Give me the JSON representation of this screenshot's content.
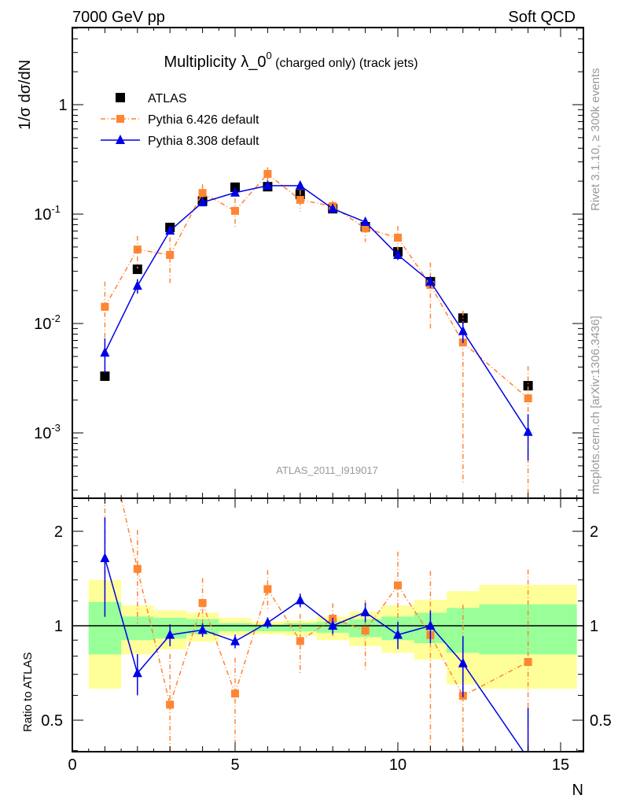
{
  "header": {
    "left": "7000 GeV pp",
    "right": "Soft QCD"
  },
  "side_text": {
    "rivet": "Rivet 3.1.10, ≥ 300k events",
    "mcplots": "mcplots.cern.ch [arXiv:1306.3436]"
  },
  "watermark": "ATLAS_2011_I919017",
  "chart_data": {
    "type": "scatter",
    "title": {
      "main": "Multiplicity λ_0",
      "sup": "0",
      "suffix": " (charged only) (track jets)"
    },
    "xlabel": "N",
    "ylabel": "1/σ dσ/dN",
    "ratio_ylabel": "Ratio to ATLAS",
    "xlim": [
      0,
      15.7
    ],
    "ylim": [
      0.00025,
      5.0
    ],
    "yscale": "log",
    "ratio_ylim": [
      0.397,
      2.55
    ],
    "x_ticks": [
      "0",
      "5",
      "10",
      "15"
    ],
    "y_ticks": [
      {
        "base": "10",
        "exp": "-3",
        "value": 0.001
      },
      {
        "base": "10",
        "exp": "-2",
        "value": 0.01
      },
      {
        "base": "10",
        "exp": "-1",
        "value": 0.1
      },
      {
        "base": "1",
        "exp": "",
        "value": 1
      }
    ],
    "ratio_ticks": [
      {
        "label": "0.5",
        "value": 0.5
      },
      {
        "label": "1",
        "value": 1
      },
      {
        "label": "2",
        "value": 2
      }
    ],
    "legend_position": "top-left",
    "x": [
      1,
      2,
      3,
      4,
      5,
      6,
      7,
      8,
      9,
      10,
      11,
      12,
      14
    ],
    "series": [
      {
        "name": "ATLAS",
        "color": "#000000",
        "marker": "square",
        "values": [
          0.0033,
          0.0313,
          0.0755,
          0.132,
          0.176,
          0.178,
          0.151,
          0.112,
          0.0767,
          0.0452,
          0.0241,
          0.0112,
          0.0027
        ]
      },
      {
        "name": "Pythia 6.426 default",
        "color": "#ff8533",
        "marker": "square",
        "line": "dashdot",
        "values": [
          0.0142,
          0.0475,
          0.0423,
          0.156,
          0.107,
          0.233,
          0.135,
          0.118,
          0.074,
          0.0608,
          0.0225,
          0.0067,
          0.00207
        ],
        "rel_err": [
          0.7,
          0.33,
          0.45,
          0.2,
          0.3,
          0.15,
          0.22,
          0.12,
          0.25,
          0.28,
          0.6,
          0.95,
          0.97
        ]
      },
      {
        "name": "Pythia 8.308 default",
        "color": "#0000e6",
        "marker": "triangle",
        "line": "solid",
        "values": [
          0.00542,
          0.0221,
          0.0706,
          0.128,
          0.157,
          0.182,
          0.182,
          0.112,
          0.0847,
          0.0423,
          0.0241,
          0.0085,
          0.00102
        ],
        "rel_err": [
          0.35,
          0.15,
          0.08,
          0.05,
          0.05,
          0.04,
          0.05,
          0.06,
          0.07,
          0.1,
          0.12,
          0.22,
          0.45
        ]
      }
    ],
    "ratio_bands": {
      "bin_edges": [
        0.5,
        1.5,
        2.5,
        3.5,
        4.5,
        5.5,
        6.5,
        7.5,
        8.5,
        9.5,
        10.5,
        11.5,
        12.5,
        15.5
      ],
      "total": [
        [
          0.63,
          1.4
        ],
        [
          0.81,
          1.16
        ],
        [
          0.84,
          1.12
        ],
        [
          0.89,
          1.1
        ],
        [
          0.93,
          1.06
        ],
        [
          0.94,
          1.03
        ],
        [
          0.93,
          1.04
        ],
        [
          0.9,
          1.07
        ],
        [
          0.86,
          1.11
        ],
        [
          0.82,
          1.16
        ],
        [
          0.78,
          1.21
        ],
        [
          0.65,
          1.29
        ],
        [
          0.63,
          1.35
        ]
      ],
      "stat": [
        [
          0.81,
          1.19
        ],
        [
          0.9,
          1.07
        ],
        [
          0.91,
          1.06
        ],
        [
          0.94,
          1.05
        ],
        [
          0.96,
          1.02
        ],
        [
          0.96,
          1.01
        ],
        [
          0.96,
          1.02
        ],
        [
          0.95,
          1.03
        ],
        [
          0.92,
          1.05
        ],
        [
          0.9,
          1.07
        ],
        [
          0.88,
          1.1
        ],
        [
          0.82,
          1.14
        ],
        [
          0.81,
          1.17
        ]
      ],
      "total_color": "#ffff99",
      "stat_color": "#99ff99"
    }
  }
}
